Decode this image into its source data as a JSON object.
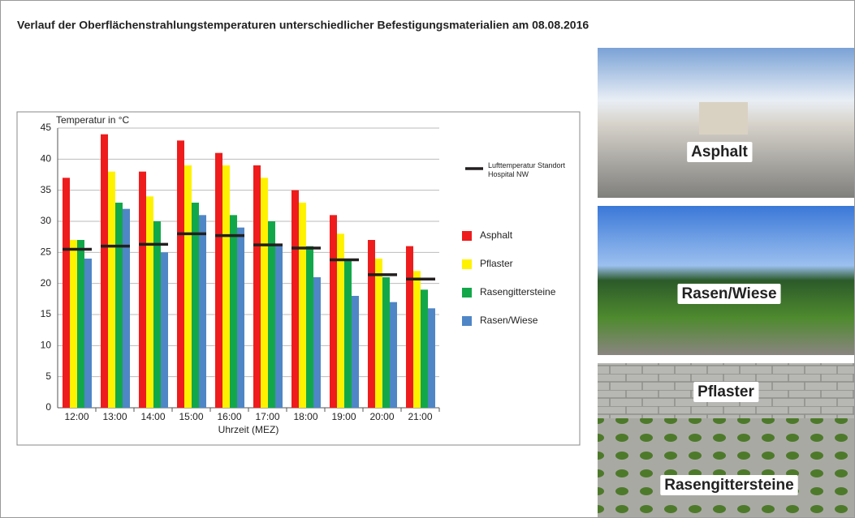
{
  "chart_data": {
    "type": "bar",
    "title": "Verlauf der Oberflächenstrahlungstemperaturen unterschiedlicher Befestigungsmaterialien am 08.08.2016",
    "ylabel": "Temperatur in °C",
    "xlabel": "Uhrzeit (MEZ)",
    "categories": [
      "12:00",
      "13:00",
      "14:00",
      "15:00",
      "16:00",
      "17:00",
      "18:00",
      "19:00",
      "20:00",
      "21:00"
    ],
    "series": [
      {
        "name": "Asphalt",
        "color": "#ee1c1c",
        "values": [
          37,
          44,
          38,
          43,
          41,
          39,
          35,
          31,
          27,
          26
        ]
      },
      {
        "name": "Pflaster",
        "color": "#fff200",
        "values": [
          27,
          38,
          34,
          39,
          39,
          37,
          33,
          28,
          24,
          22
        ]
      },
      {
        "name": "Rasengittersteine",
        "color": "#12a84a",
        "values": [
          27,
          33,
          30,
          33,
          31,
          30,
          26,
          24,
          21,
          19
        ]
      },
      {
        "name": "Rasen/Wiese",
        "color": "#4f86c6",
        "values": [
          24,
          32,
          25,
          31,
          29,
          26,
          21,
          18,
          17,
          16
        ]
      },
      {
        "name": "Lufttemperatur Standort Hospital NW",
        "color": "#231f20",
        "marker": "dash",
        "values": [
          25.5,
          26,
          26.3,
          28,
          27.7,
          26.2,
          25.7,
          23.8,
          21.4,
          20.7
        ]
      }
    ],
    "ylim": [
      0,
      45
    ],
    "yticks": [
      0,
      5,
      10,
      15,
      20,
      25,
      30,
      35,
      40,
      45
    ],
    "grid": true
  },
  "photo_labels": [
    {
      "text": "Asphalt",
      "color": "#e31e24"
    },
    {
      "text": "Rasen/Wiese",
      "color": "#1ba1d9"
    },
    {
      "text": "Pflaster",
      "color": "#ffed00"
    },
    {
      "text": "Rasengittersteine",
      "color": "#12a84a"
    }
  ]
}
